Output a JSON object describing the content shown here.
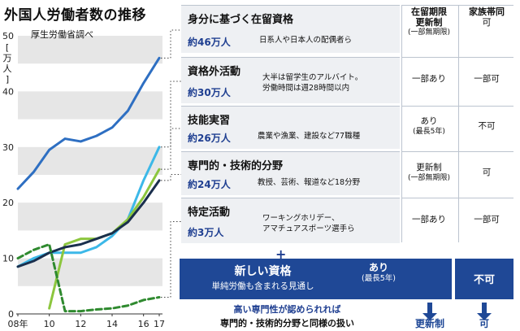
{
  "title": "外国人労働者数の推移",
  "source": "厚生労働省調べ",
  "unit": "万人",
  "chart_data": {
    "type": "line",
    "x": [
      2008,
      2009,
      2010,
      2011,
      2012,
      2013,
      2014,
      2015,
      2016,
      2017
    ],
    "x_tick_labels": [
      "08年",
      "10",
      "12",
      "14",
      "16",
      "17"
    ],
    "x_ticks": [
      2008,
      2010,
      2012,
      2014,
      2016,
      2017
    ],
    "ylim": [
      0,
      50
    ],
    "y_ticks": [
      0,
      10,
      20,
      30,
      40,
      50
    ],
    "series": [
      {
        "name": "身分に基づく在留資格",
        "color": "#2e6fc2",
        "style": "solid",
        "values": [
          22.5,
          25.5,
          29.5,
          31.5,
          31,
          32,
          33.5,
          36.5,
          41.5,
          46
        ]
      },
      {
        "name": "資格外活動",
        "color": "#3cb8e8",
        "style": "solid",
        "values": [
          8.5,
          10,
          11,
          11,
          11,
          12,
          14,
          17,
          24,
          30
        ]
      },
      {
        "name": "技能実習",
        "color": "#8cc63e",
        "style": "solid",
        "values": [
          null,
          null,
          1,
          12.5,
          13.5,
          13.5,
          14.5,
          17,
          21,
          26
        ]
      },
      {
        "name": "専門的・技術的分野",
        "color": "#1a2f4d",
        "style": "solid",
        "values": [
          8.5,
          9.5,
          11,
          12,
          12.5,
          13.5,
          14.5,
          16.5,
          20,
          24
        ]
      },
      {
        "name": "特定活動",
        "color": "#2f8a2f",
        "style": "dashed",
        "values": [
          10,
          11.5,
          12.5,
          0.5,
          0.5,
          0.8,
          1,
          1.5,
          2.5,
          3
        ]
      }
    ]
  },
  "table": {
    "headers": {
      "duration": [
        "在留期限",
        "更新制",
        "(一部無期限)"
      ],
      "family": [
        "家族帯同",
        "可"
      ]
    },
    "rows": [
      {
        "name": "身分に基づく在留資格",
        "count": "約46万人",
        "desc": "日系人や日本人の配偶者ら",
        "duration": "",
        "duration_note": "",
        "family": ""
      },
      {
        "name": "資格外活動",
        "count": "約30万人",
        "desc": "大半は留学生のアルバイト。労働時間は週28時間以内",
        "desc_lines": [
          "大半は留学生のアルバイト。",
          "労働時間は週28時間以内"
        ],
        "duration": "一部あり",
        "duration_note": "",
        "family": "一部可"
      },
      {
        "name": "技能実習",
        "count": "約26万人",
        "desc": "農業や漁業、建設など77職種",
        "duration": "あり",
        "duration_note": "(最長5年)",
        "family": "不可"
      },
      {
        "name": "専門的・技術的分野",
        "count": "約24万人",
        "desc": "教授、芸術、報道など18分野",
        "duration": "更新制",
        "duration_note": "(一部無期限)",
        "family": "可"
      },
      {
        "name": "特定活動",
        "count": "約3万人",
        "desc": "ワーキングホリデー、アマチュアスポーツ選手ら",
        "desc_lines": [
          "ワーキングホリデー、",
          "アマチュアスポーツ選手ら"
        ],
        "duration": "一部あり",
        "duration_note": "",
        "family": "一部可"
      }
    ]
  },
  "plus": "+",
  "new_status": {
    "title": "新しい資格",
    "subtitle": "単純労働も含まれる見通し",
    "duration": "あり",
    "duration_note": "(最長5年)",
    "family": "不可"
  },
  "condition": {
    "line1": "高い専門性が認められれば",
    "line2": "専門的・技術的分野と同様の扱い",
    "duration": "更新制",
    "family": "可"
  },
  "colors": {
    "accent": "#1f4896",
    "grid_band": "#e6e6e6",
    "row_bg": "#eef0f3"
  }
}
